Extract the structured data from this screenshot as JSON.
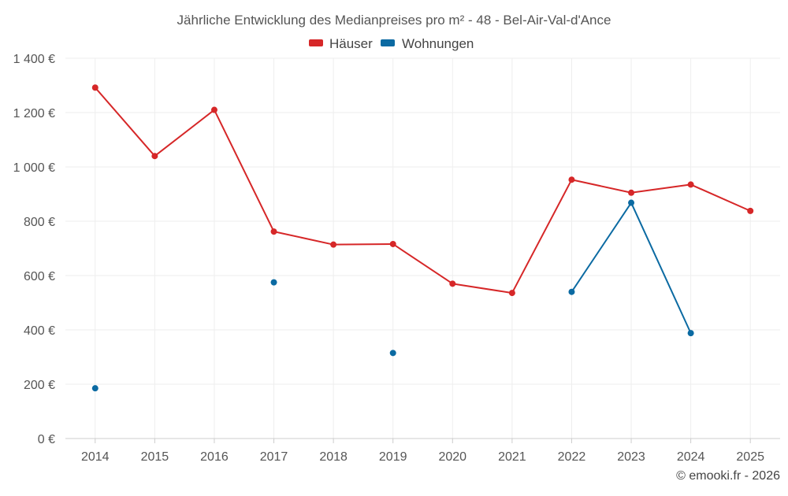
{
  "chart_data": {
    "type": "line",
    "title": "Jährliche Entwicklung des Medianpreises pro m² - 48 - Bel-Air-Val-d'Ance",
    "categories": [
      "2014",
      "2015",
      "2016",
      "2017",
      "2018",
      "2019",
      "2020",
      "2021",
      "2022",
      "2023",
      "2024",
      "2025"
    ],
    "y_ticks": [
      0,
      200,
      400,
      600,
      800,
      1000,
      1200,
      1400
    ],
    "y_tick_labels": [
      "0 €",
      "200 €",
      "400 €",
      "600 €",
      "800 €",
      "1 000 €",
      "1 200 €",
      "1 400 €"
    ],
    "ylim": [
      0,
      1400
    ],
    "grid": true,
    "legend_position": "top-center",
    "series": [
      {
        "name": "Häuser",
        "color": "#d62728",
        "values": [
          1292,
          1040,
          1210,
          762,
          714,
          716,
          570,
          536,
          953,
          905,
          935,
          838
        ]
      },
      {
        "name": "Wohnungen",
        "color": "#0b6aa2",
        "values": [
          185,
          null,
          null,
          575,
          null,
          315,
          null,
          null,
          540,
          868,
          388,
          null
        ]
      }
    ]
  },
  "credit": "© emooki.fr - 2026"
}
